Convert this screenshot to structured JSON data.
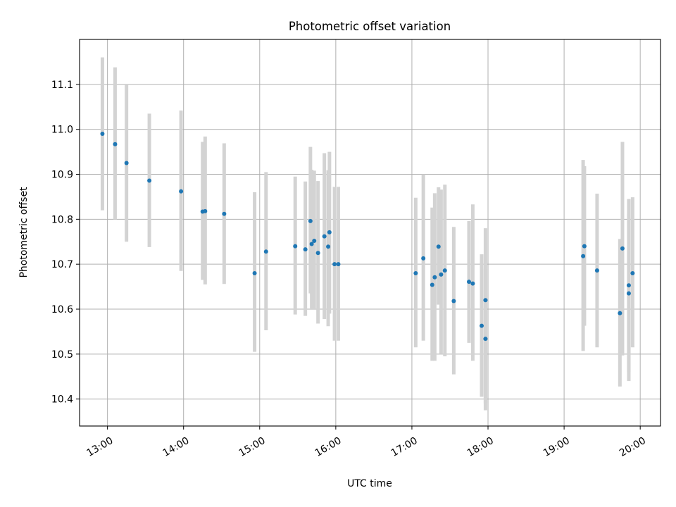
{
  "chart_data": {
    "type": "scatter",
    "title": "Photometric offset variation",
    "xlabel": "UTC time",
    "ylabel": "Photometric offset",
    "x_ticks": [
      "13:00",
      "14:00",
      "15:00",
      "16:00",
      "17:00",
      "18:00",
      "19:00",
      "20:00"
    ],
    "y_ticks": [
      "10.4",
      "10.5",
      "10.6",
      "10.7",
      "10.8",
      "10.9",
      "11.0",
      "11.1"
    ],
    "xlim": [
      "12:38",
      "20:16"
    ],
    "ylim": [
      10.34,
      11.2
    ],
    "grid": true,
    "colors": {
      "points": "#1f77b4",
      "errorbars": "#d3d3d3",
      "grid": "#b0b0b0"
    },
    "series": [
      {
        "x": [
          "12:56",
          "13:06",
          "13:15",
          "13:33",
          "13:58",
          "14:15",
          "14:17",
          "14:32",
          "14:56",
          "15:05",
          "15:28",
          "15:36",
          "15:40",
          "15:41",
          "15:43",
          "15:46",
          "15:51",
          "15:54",
          "15:55",
          "15:59",
          "16:02",
          "17:03",
          "17:09",
          "17:16",
          "17:18",
          "17:21",
          "17:23",
          "17:26",
          "17:33",
          "17:45",
          "17:48",
          "17:55",
          "17:58",
          "17:58",
          "19:15",
          "19:16",
          "19:26",
          "19:44",
          "19:46",
          "19:51",
          "19:51",
          "19:54"
        ],
        "y": [
          10.99,
          10.967,
          10.925,
          10.886,
          10.862,
          10.817,
          10.818,
          10.812,
          10.68,
          10.728,
          10.74,
          10.733,
          10.796,
          10.745,
          10.752,
          10.725,
          10.762,
          10.739,
          10.771,
          10.7,
          10.7,
          10.68,
          10.713,
          10.654,
          10.671,
          10.739,
          10.677,
          10.686,
          10.618,
          10.661,
          10.657,
          10.563,
          10.62,
          10.534,
          10.718,
          10.74,
          10.686,
          10.591,
          10.735,
          10.653,
          10.635,
          10.68
        ],
        "err_low": [
          10.82,
          10.8,
          10.75,
          10.738,
          10.685,
          10.665,
          10.655,
          10.656,
          10.505,
          10.553,
          10.588,
          10.585,
          10.635,
          10.6,
          10.6,
          10.568,
          10.578,
          10.562,
          10.59,
          10.53,
          10.53,
          10.515,
          10.53,
          10.485,
          10.485,
          10.61,
          10.5,
          10.495,
          10.455,
          10.525,
          10.485,
          10.405,
          10.375,
          10.39,
          10.507,
          10.563,
          10.515,
          10.428,
          10.497,
          10.44,
          10.46,
          10.515
        ],
        "err_high": [
          11.16,
          11.138,
          11.1,
          11.035,
          11.042,
          10.972,
          10.984,
          10.969,
          10.86,
          10.905,
          10.895,
          10.884,
          10.961,
          10.91,
          10.908,
          10.885,
          10.947,
          10.909,
          10.95,
          10.872,
          10.872,
          10.848,
          10.9,
          10.826,
          10.858,
          10.871,
          10.866,
          10.877,
          10.783,
          10.796,
          10.833,
          10.722,
          10.78,
          10.69,
          10.932,
          10.918,
          10.857,
          10.756,
          10.972,
          10.845,
          10.812,
          10.849
        ]
      }
    ]
  }
}
